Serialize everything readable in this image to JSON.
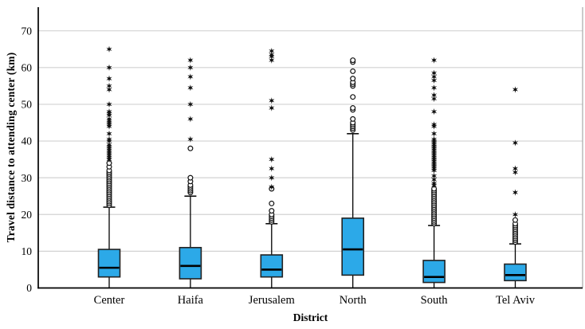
{
  "chart_data": {
    "type": "boxplot",
    "title": "",
    "xlabel": "District",
    "ylabel": "Travel distance to attending center (km)",
    "ylim": [
      0,
      76
    ],
    "yticks": [
      0,
      10,
      20,
      30,
      40,
      50,
      60,
      70
    ],
    "grid": "horizontal",
    "legend": "none",
    "categories": [
      "Center",
      "Haifa",
      "Jerusalem",
      "North",
      "South",
      "Tel Aviv"
    ],
    "boxes": [
      {
        "category": "Center",
        "whisker_low": 0,
        "q1": 3,
        "median": 5.5,
        "q3": 10.5,
        "whisker_high": 22,
        "outliers_circle": [
          22.5,
          23,
          23.5,
          24,
          24.5,
          25,
          25.5,
          26,
          26.5,
          27,
          27.5,
          28,
          28.5,
          29,
          29.5,
          30,
          30.5,
          31,
          31.5,
          32,
          33,
          34
        ],
        "outliers_star": [
          35,
          35.5,
          36,
          36.5,
          37,
          37.5,
          38,
          38.5,
          39,
          40,
          40.5,
          42,
          44,
          44.5,
          45,
          45.5,
          46,
          47,
          47.5,
          48,
          50,
          54,
          55,
          57,
          60,
          65
        ]
      },
      {
        "category": "Haifa",
        "whisker_low": 0,
        "q1": 2.5,
        "median": 6,
        "q3": 11,
        "whisker_high": 25,
        "outliers_circle": [
          26,
          26.5,
          27,
          27.5,
          28,
          29,
          30,
          38
        ],
        "outliers_star": [
          40.5,
          46,
          50,
          54.5,
          57.5,
          60,
          62
        ]
      },
      {
        "category": "Jerusalem",
        "whisker_low": 0,
        "q1": 3,
        "median": 5,
        "q3": 9,
        "whisker_high": 17.5,
        "outliers_circle": [
          18,
          18.5,
          19,
          19.5,
          20,
          21,
          23,
          27
        ],
        "outliers_star": [
          27.5,
          30,
          32.5,
          35,
          49,
          51,
          62,
          63,
          63.5,
          64.5
        ]
      },
      {
        "category": "North",
        "whisker_low": 0,
        "q1": 3.5,
        "median": 10.5,
        "q3": 19,
        "whisker_high": 42,
        "outliers_circle": [
          43,
          43.5,
          44,
          44.5,
          45,
          46,
          48.5,
          49,
          52,
          55,
          55.5,
          56,
          57,
          59,
          61.5,
          62
        ],
        "outliers_star": []
      },
      {
        "category": "South",
        "whisker_low": 0,
        "q1": 1.5,
        "median": 3,
        "q3": 7.5,
        "whisker_high": 17,
        "outliers_circle": [
          17.5,
          18,
          18.5,
          19,
          19.5,
          20,
          20.5,
          21,
          21.5,
          22,
          22.5,
          23,
          23.5,
          24,
          24.5,
          25,
          25.5,
          26,
          26.5,
          27
        ],
        "outliers_star": [
          28,
          28.5,
          29.5,
          30.5,
          32,
          32.5,
          33,
          33.5,
          34,
          34.5,
          35,
          35.5,
          36,
          36.5,
          37,
          37.5,
          38,
          38.5,
          39,
          39.5,
          40,
          40.5,
          42,
          44,
          44.5,
          48,
          51.5,
          52.5,
          54.5,
          56.5,
          57.5,
          58.5,
          62
        ]
      },
      {
        "category": "Tel Aviv",
        "whisker_low": 0,
        "q1": 2,
        "median": 3.5,
        "q3": 6.5,
        "whisker_high": 12,
        "outliers_circle": [
          12.5,
          13,
          13.5,
          14,
          14.5,
          15,
          15.5,
          16,
          16.5,
          17,
          17.5,
          18.5
        ],
        "outliers_star": [
          20,
          26,
          31.5,
          32.5,
          39.5,
          54
        ]
      }
    ],
    "colors": {
      "box_fill": "#2CA9E8",
      "box_border": "#222222",
      "median": "#000000",
      "whisker": "#000000",
      "outlier": "#111111",
      "grid": "#d2d2d2",
      "axis": "#000000",
      "right_border": "#a8a8a8",
      "background": "#ffffff"
    }
  }
}
